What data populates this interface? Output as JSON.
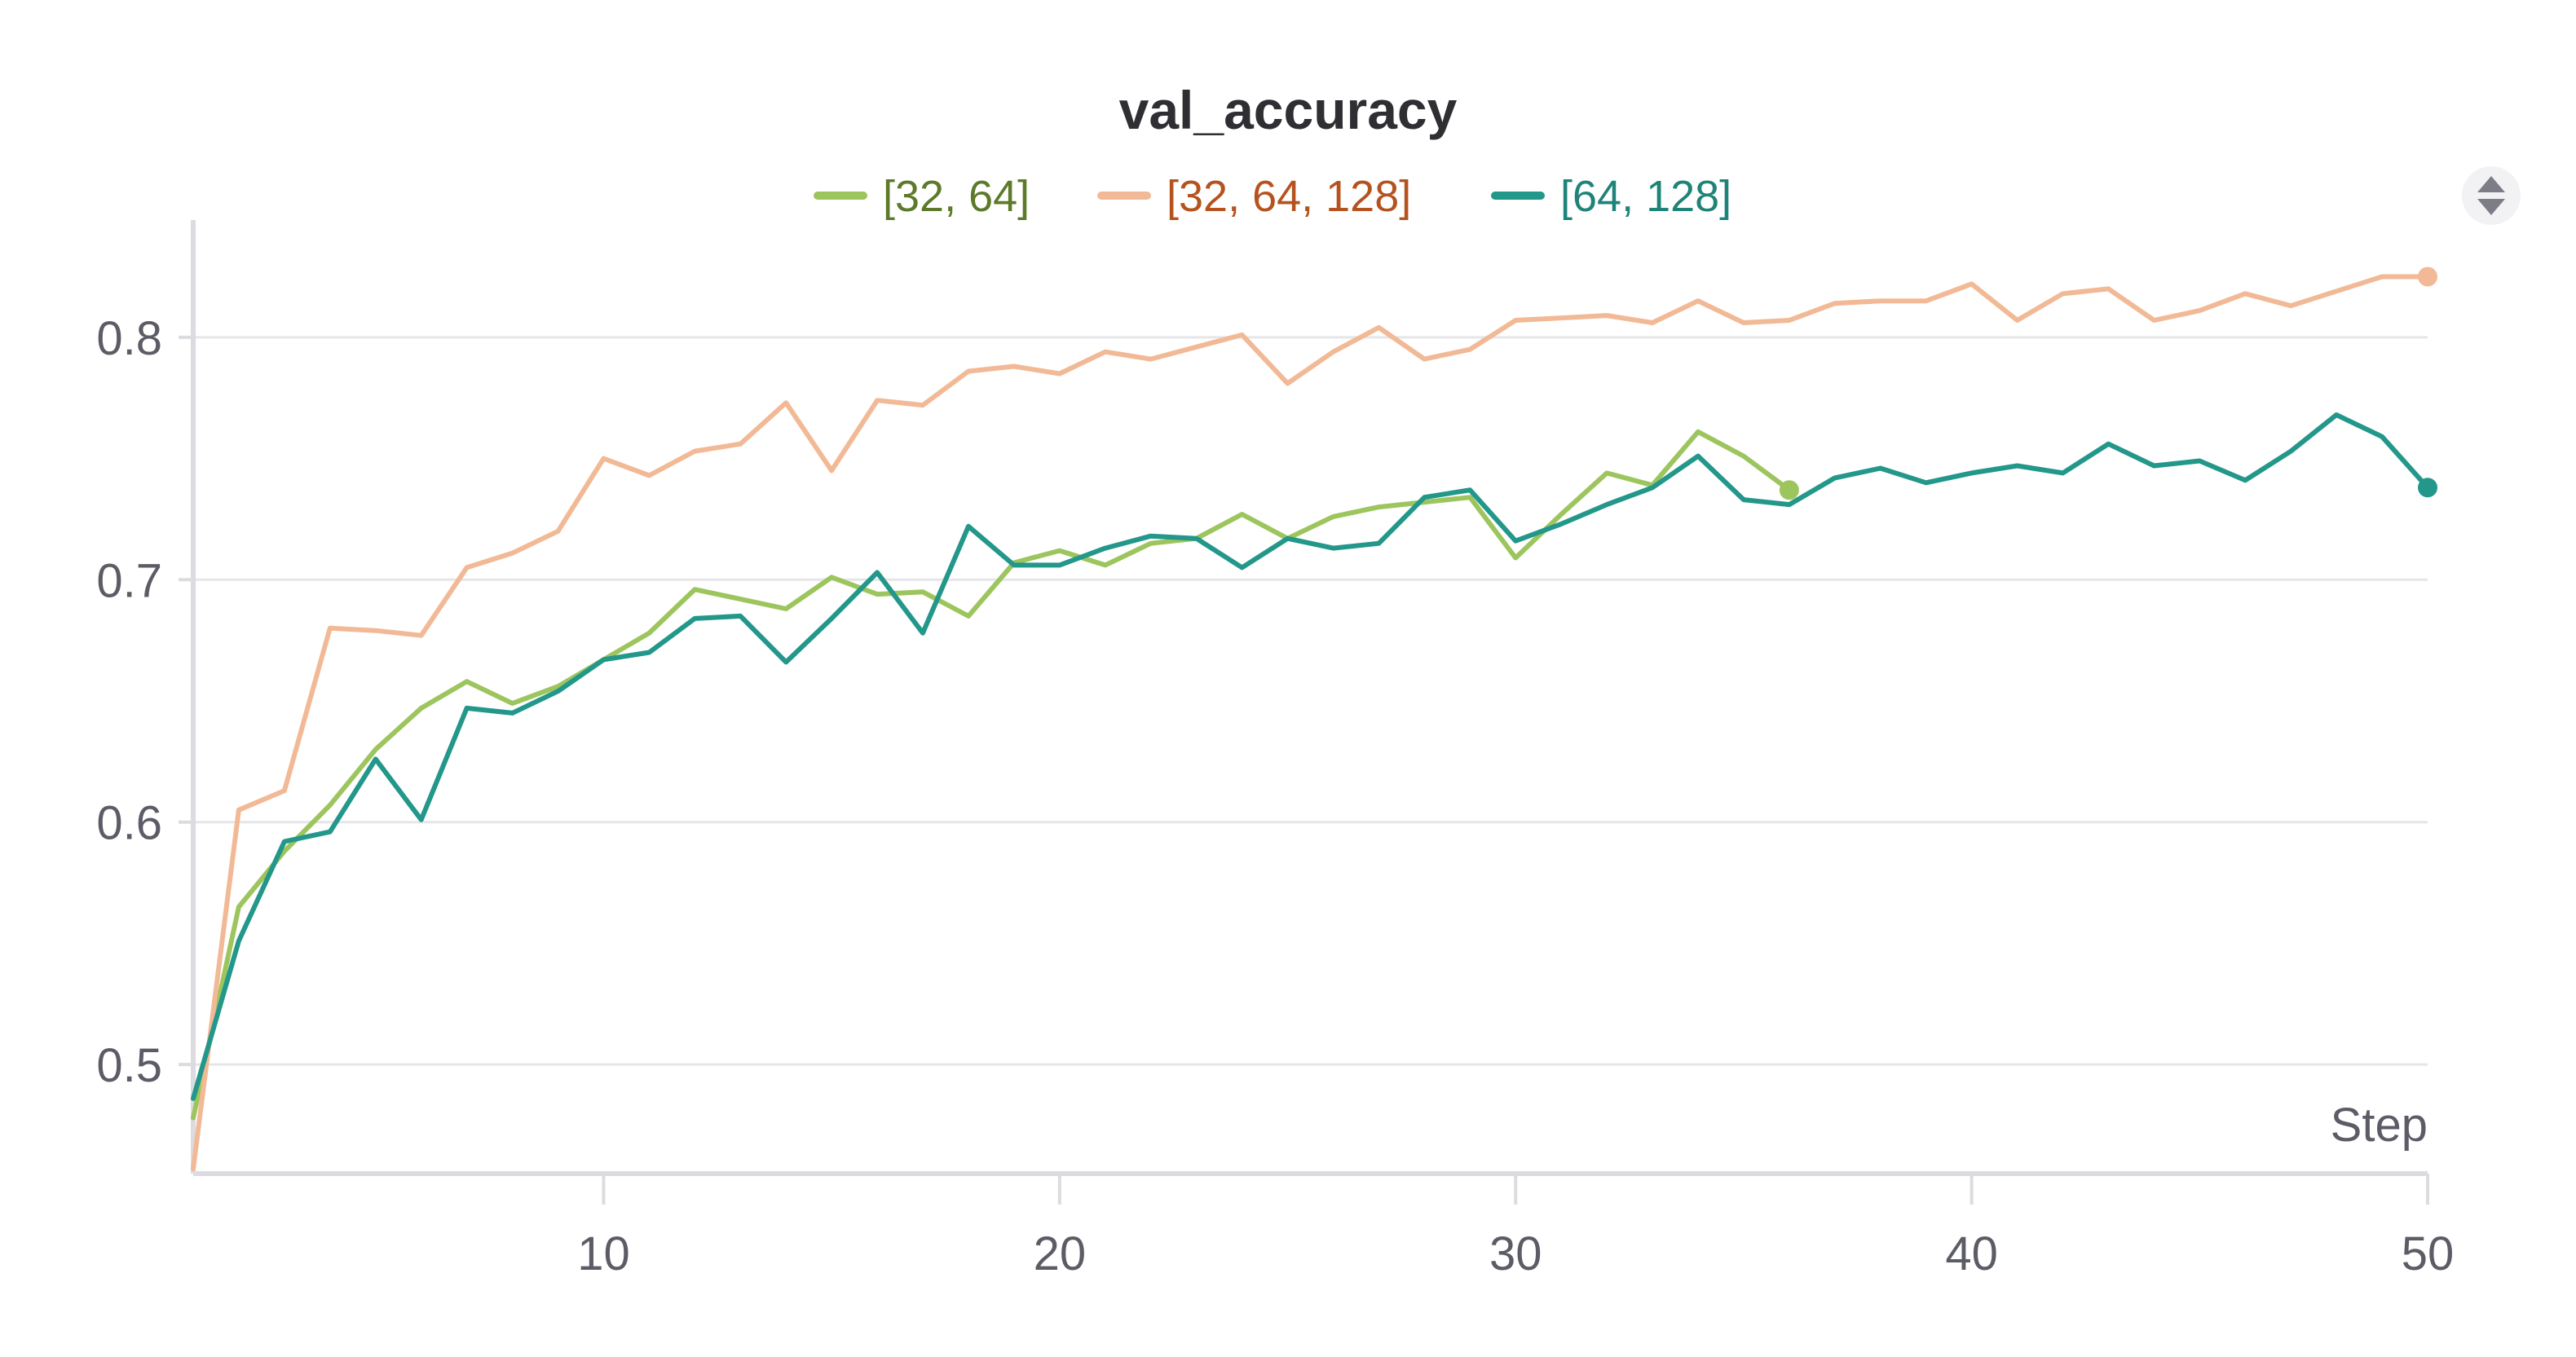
{
  "chart_data": {
    "type": "line",
    "title": "val_accuracy",
    "xlabel": "Step",
    "ylabel": "",
    "xlim": [
      1,
      50
    ],
    "ylim": [
      0.455,
      0.845
    ],
    "x_ticks": [
      10,
      20,
      30,
      40,
      50
    ],
    "y_ticks": [
      0.5,
      0.6,
      0.7,
      0.8
    ],
    "x_tick_labels": [
      "10",
      "20",
      "30",
      "40",
      "50"
    ],
    "y_tick_labels": [
      "0.5",
      "0.6",
      "0.7",
      "0.8"
    ],
    "grid": true,
    "legend_position": "top-center",
    "series": [
      {
        "name": "[32, 64]",
        "color": "#9dc55d",
        "text_color": "#5c7a2a",
        "x": [
          1,
          2,
          3,
          4,
          5,
          6,
          7,
          8,
          9,
          10,
          11,
          12,
          13,
          14,
          15,
          16,
          17,
          18,
          19,
          20,
          21,
          22,
          23,
          24,
          25,
          26,
          27,
          28,
          29,
          30,
          31,
          32,
          33,
          34,
          35,
          36
        ],
        "y": [
          0.478,
          0.565,
          0.588,
          0.607,
          0.63,
          0.647,
          0.658,
          0.649,
          0.656,
          0.667,
          0.678,
          0.696,
          0.692,
          0.688,
          0.701,
          0.694,
          0.695,
          0.685,
          0.707,
          0.712,
          0.706,
          0.715,
          0.717,
          0.727,
          0.717,
          0.726,
          0.73,
          0.732,
          0.734,
          0.709,
          0.727,
          0.744,
          0.739,
          0.761,
          0.751,
          0.737
        ]
      },
      {
        "name": "[32, 64, 128]",
        "color": "#f2b996",
        "text_color": "#b5531f",
        "x": [
          1,
          2,
          3,
          4,
          5,
          6,
          7,
          8,
          9,
          10,
          11,
          12,
          13,
          14,
          15,
          16,
          17,
          18,
          19,
          20,
          21,
          22,
          23,
          24,
          25,
          26,
          27,
          28,
          29,
          30,
          31,
          32,
          33,
          34,
          35,
          36,
          37,
          38,
          39,
          40,
          41,
          42,
          43,
          44,
          45,
          46,
          47,
          48,
          49,
          50
        ],
        "y": [
          0.457,
          0.605,
          0.613,
          0.68,
          0.679,
          0.677,
          0.705,
          0.711,
          0.72,
          0.75,
          0.743,
          0.753,
          0.756,
          0.773,
          0.745,
          0.774,
          0.772,
          0.786,
          0.788,
          0.785,
          0.794,
          0.791,
          0.796,
          0.801,
          0.781,
          0.794,
          0.804,
          0.791,
          0.795,
          0.807,
          0.808,
          0.809,
          0.806,
          0.815,
          0.806,
          0.807,
          0.814,
          0.815,
          0.815,
          0.822,
          0.807,
          0.818,
          0.82,
          0.807,
          0.811,
          0.818,
          0.813,
          0.819,
          0.825,
          0.825
        ]
      },
      {
        "name": "[64, 128]",
        "color": "#22978a",
        "text_color": "#1e8378",
        "x": [
          1,
          2,
          3,
          4,
          5,
          6,
          7,
          8,
          9,
          10,
          11,
          12,
          13,
          14,
          15,
          16,
          17,
          18,
          19,
          20,
          21,
          22,
          23,
          24,
          25,
          26,
          27,
          28,
          29,
          30,
          31,
          32,
          33,
          34,
          35,
          36,
          37,
          38,
          39,
          40,
          41,
          42,
          43,
          44,
          45,
          46,
          47,
          48,
          49,
          50
        ],
        "y": [
          0.486,
          0.551,
          0.592,
          0.596,
          0.626,
          0.601,
          0.647,
          0.645,
          0.654,
          0.667,
          0.67,
          0.684,
          0.685,
          0.666,
          0.684,
          0.703,
          0.678,
          0.722,
          0.706,
          0.706,
          0.713,
          0.718,
          0.717,
          0.705,
          0.717,
          0.713,
          0.715,
          0.734,
          0.737,
          0.716,
          0.723,
          0.731,
          0.738,
          0.751,
          0.733,
          0.731,
          0.742,
          0.746,
          0.74,
          0.744,
          0.747,
          0.744,
          0.756,
          0.747,
          0.749,
          0.741,
          0.753,
          0.768,
          0.759,
          0.738
        ]
      }
    ]
  }
}
